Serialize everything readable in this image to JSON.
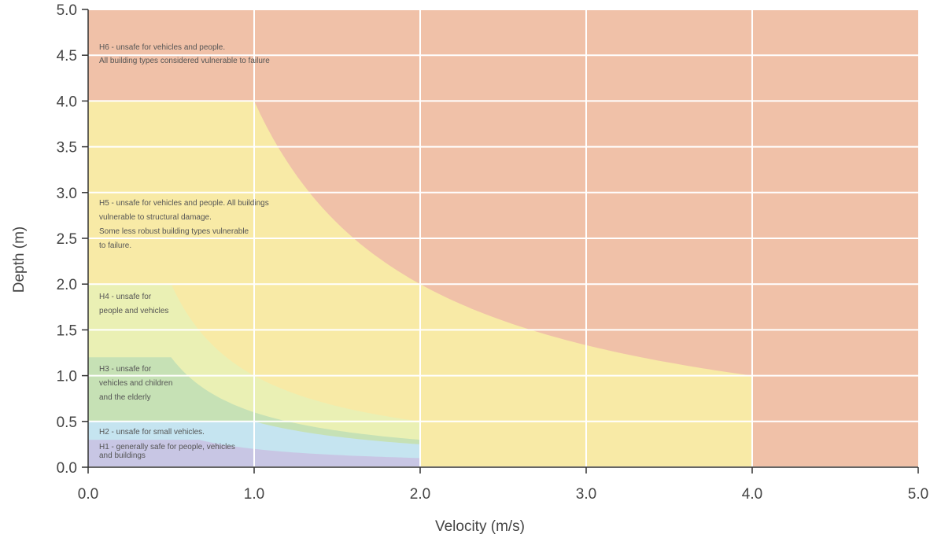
{
  "chart_data": {
    "type": "area",
    "title": "",
    "xlabel": "Velocity (m/s)",
    "ylabel": "Depth (m)",
    "xlim": [
      0,
      5
    ],
    "ylim": [
      0,
      5
    ],
    "x_ticks": [
      "0.0",
      "1.0",
      "2.0",
      "3.0",
      "4.0",
      "5.0"
    ],
    "y_ticks": [
      "0.0",
      "0.5",
      "1.0",
      "1.5",
      "2.0",
      "2.5",
      "3.0",
      "3.5",
      "4.0",
      "4.5",
      "5.0"
    ],
    "grid": true,
    "zones": [
      {
        "id": "H6",
        "color": "#f0c1a8",
        "label": [
          "H6 - unsafe for vehicles and people.",
          "All building types considered vulnerable to failure"
        ]
      },
      {
        "id": "H5",
        "color": "#f8eaa6",
        "upper_boundary": "depth x velocity = 4 for depth below 4.0 m, velocity below 4.0 m/s",
        "label": [
          "H5 - unsafe for vehicles and people. All buildings",
          "vulnerable to structural damage.",
          "Some less robust building types vulnerable",
          "to failure."
        ]
      },
      {
        "id": "H4",
        "color": "#eaf0b4",
        "upper_boundary": "depth x velocity = 1 for velocity up to 2.0 m/s",
        "label": [
          "H4 - unsafe for",
          "people and vehicles"
        ]
      },
      {
        "id": "H3",
        "color": "#c6e1b5",
        "upper_boundary": "depth x velocity = 0.6 for depth below 1.2 m",
        "label": [
          "H3 - unsafe for",
          "vehicles and children",
          "and the elderly"
        ]
      },
      {
        "id": "H2",
        "color": "#c5e4f0",
        "upper_boundary": "depth 0.5 m at low velocity, depth x velocity = 0.5",
        "label": [
          "H2 - unsafe for small vehicles."
        ]
      },
      {
        "id": "H1",
        "color": "#c8c6e4",
        "upper_boundary": "depth 0.3 m at low velocity, depth x velocity = 0.2",
        "label": [
          "H1 - generally safe for people, vehicles",
          "and buildings"
        ]
      }
    ]
  }
}
